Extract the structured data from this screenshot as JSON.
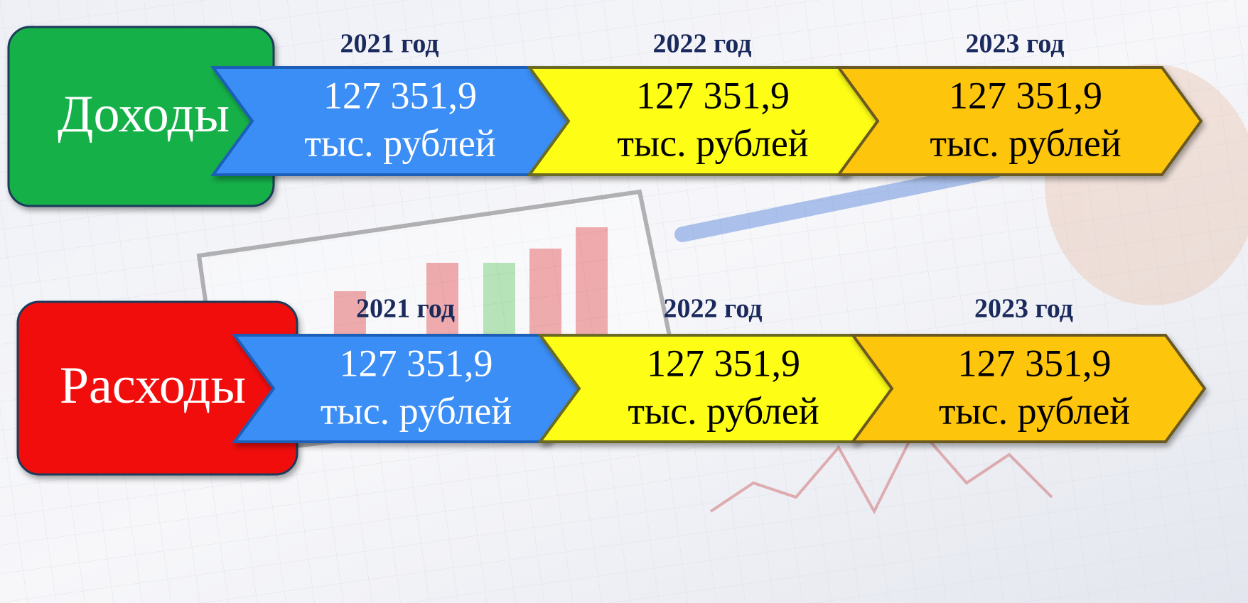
{
  "rows": [
    {
      "label": "Доходы",
      "items": [
        {
          "year": "2021 год",
          "value": "127 351,9",
          "unit": "тыс. рублей"
        },
        {
          "year": "2022 год",
          "value": "127 351,9",
          "unit": "тыс. рублей"
        },
        {
          "year": "2023 год",
          "value": "127 351,9",
          "unit": "тыс. рублей"
        }
      ]
    },
    {
      "label": "Расходы",
      "items": [
        {
          "year": "2021 год",
          "value": "127 351,9",
          "unit": "тыс. рублей"
        },
        {
          "year": "2022 год",
          "value": "127 351,9",
          "unit": "тыс. рублей"
        },
        {
          "year": "2023 год",
          "value": "127 351,9",
          "unit": "тыс. рублей"
        }
      ]
    }
  ]
}
